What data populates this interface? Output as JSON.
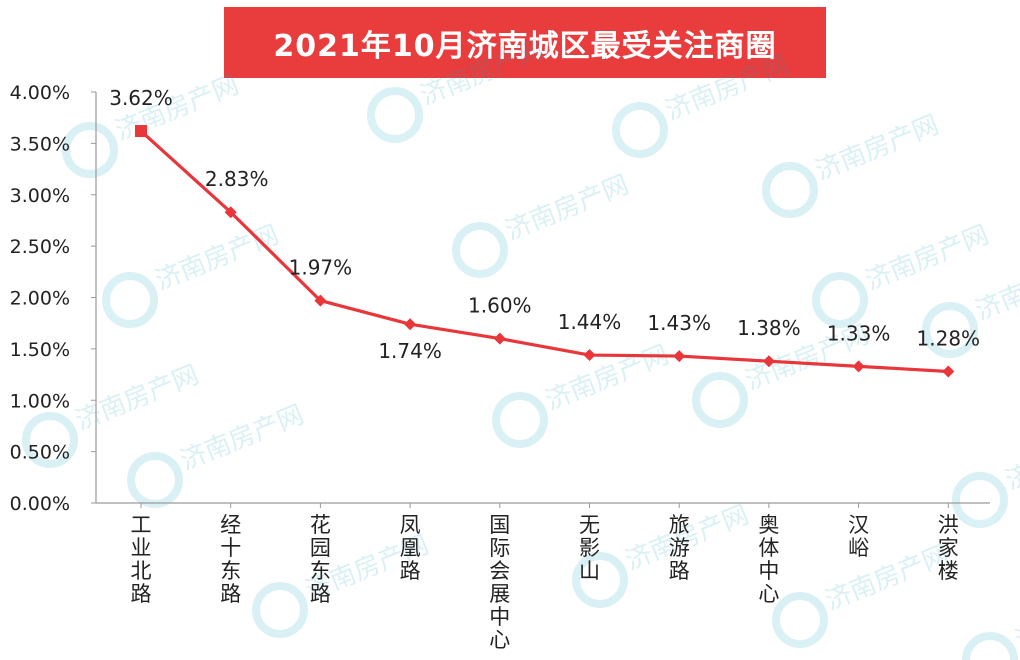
{
  "chart_data": {
    "type": "line",
    "title": "2021年10月济南城区最受关注商圈",
    "categories": [
      "工业北路",
      "经十东路",
      "花园东路",
      "凤凰路",
      "国际会展中心",
      "无影山",
      "旅游路",
      "奥体中心",
      "汉峪",
      "洪家楼"
    ],
    "series": [
      {
        "values": [
          3.62,
          2.83,
          1.97,
          1.74,
          1.6,
          1.44,
          1.43,
          1.38,
          1.33,
          1.28
        ]
      }
    ],
    "value_labels": [
      "3.62%",
      "2.83%",
      "1.97%",
      "1.74%",
      "1.60%",
      "1.44%",
      "1.43%",
      "1.38%",
      "1.33%",
      "1.28%"
    ],
    "y_ticks": [
      "0.00%",
      "0.50%",
      "1.00%",
      "1.50%",
      "2.00%",
      "2.50%",
      "3.00%",
      "3.50%",
      "4.00%"
    ],
    "ylim": [
      0,
      4
    ],
    "xlabel": "",
    "ylabel": "",
    "grid": false,
    "line_color": "#e8363a",
    "title_bg_color": "#e83c3d",
    "watermark": "济南房产网"
  }
}
